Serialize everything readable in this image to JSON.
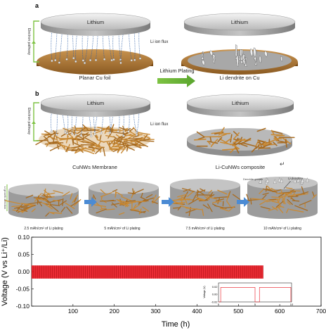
{
  "panel_a": {
    "letter": "a",
    "left_disk_label": "Lithium",
    "electron_pathway": "Electron pathway",
    "li_ion_flux": "Li ion flux",
    "left_caption": "Planar Cu foil",
    "arrow_label": "Lithium Plating",
    "right_disk_label": "Lithium",
    "right_caption": "Li dendrite on Cu"
  },
  "panel_b": {
    "letter": "b",
    "left_disk_label": "Lithium",
    "electron_pathway": "Electron pathway",
    "li_ion_flux": "Li ion flux",
    "left_caption": "CuNWs Membrane",
    "right_disk_label": "Lithium",
    "right_caption": "Li-CuNWs composite"
  },
  "panel_c": {
    "growth_direction": "Li growth direction",
    "dendrite_growth": "Dendrite growth",
    "li_dendrite": "Li dendrite",
    "captions": [
      "2.5 mAh/cm² of Li plating",
      "5 mAh/cm² of Li plating",
      "7.5 mAh/cm² of Li plating",
      "10 mAh/cm² of Li plating"
    ],
    "return_mark": "↵"
  },
  "chart_data": {
    "type": "line",
    "xlabel": "Time (h)",
    "ylabel": "Voltage (V vs Li⁺/Li)",
    "xlim": [
      0,
      700
    ],
    "ylim": [
      -0.1,
      0.1
    ],
    "xticks": [
      "100",
      "200",
      "300",
      "400",
      "500",
      "600",
      "700"
    ],
    "yticks": [
      "0.10",
      "0.05",
      "0.00",
      "-0.05",
      "-0.10"
    ],
    "series": [
      {
        "color": "#e8141e",
        "x_start": 0,
        "x_end": 560,
        "v_high": 0.018,
        "v_low": -0.02
      }
    ],
    "inset": {
      "xlim": [
        0,
        10
      ],
      "ylim": [
        -0.02,
        0.03
      ],
      "xticks": [
        "0",
        "5",
        "10"
      ],
      "yticks": [
        "0.02",
        "0.00",
        "-0.02"
      ],
      "ylabel": "Voltage (V)",
      "v_high": 0.018,
      "v_low": -0.02
    }
  }
}
